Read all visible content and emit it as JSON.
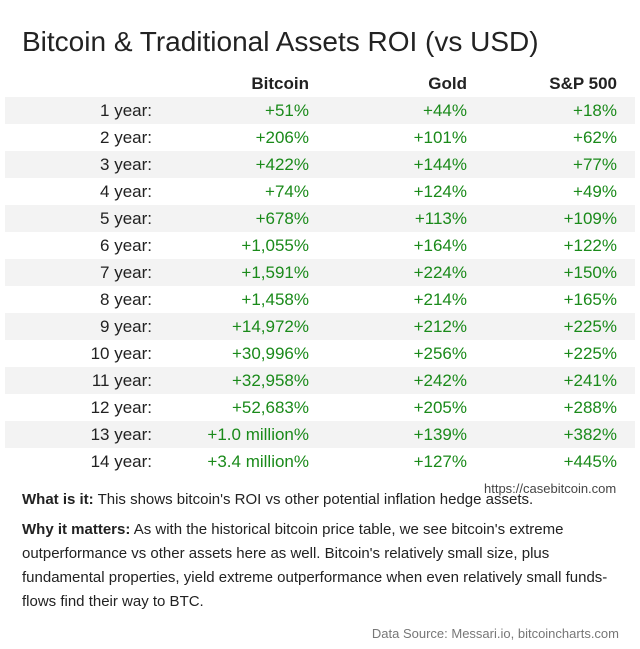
{
  "title": "Bitcoin & Traditional Assets ROI (vs USD)",
  "table": {
    "headers": [
      "",
      "Bitcoin",
      "Gold",
      "S&P 500"
    ],
    "rows": [
      {
        "label": "1 year:",
        "bitcoin": "+51%",
        "gold": "+44%",
        "sp500": "+18%"
      },
      {
        "label": "2 year:",
        "bitcoin": "+206%",
        "gold": "+101%",
        "sp500": "+62%"
      },
      {
        "label": "3 year:",
        "bitcoin": "+422%",
        "gold": "+144%",
        "sp500": "+77%"
      },
      {
        "label": "4 year:",
        "bitcoin": "+74%",
        "gold": "+124%",
        "sp500": "+49%"
      },
      {
        "label": "5 year:",
        "bitcoin": "+678%",
        "gold": "+113%",
        "sp500": "+109%"
      },
      {
        "label": "6 year:",
        "bitcoin": "+1,055%",
        "gold": "+164%",
        "sp500": "+122%"
      },
      {
        "label": "7 year:",
        "bitcoin": "+1,591%",
        "gold": "+224%",
        "sp500": "+150%"
      },
      {
        "label": "8 year:",
        "bitcoin": "+1,458%",
        "gold": "+214%",
        "sp500": "+165%"
      },
      {
        "label": "9 year:",
        "bitcoin": "+14,972%",
        "gold": "+212%",
        "sp500": "+225%"
      },
      {
        "label": "10 year:",
        "bitcoin": "+30,996%",
        "gold": "+256%",
        "sp500": "+225%"
      },
      {
        "label": "11 year:",
        "bitcoin": "+32,958%",
        "gold": "+242%",
        "sp500": "+241%"
      },
      {
        "label": "12 year:",
        "bitcoin": "+52,683%",
        "gold": "+205%",
        "sp500": "+288%"
      },
      {
        "label": "13 year:",
        "bitcoin": "+1.0 million%",
        "gold": "+139%",
        "sp500": "+382%"
      },
      {
        "label": "14 year:",
        "bitcoin": "+3.4 million%",
        "gold": "+127%",
        "sp500": "+445%"
      }
    ]
  },
  "watermark": "https://casebitcoin.com",
  "what_is_it": {
    "label": "What is it:",
    "text": " This shows bitcoin's ROI vs other potential inflation hedge assets."
  },
  "why_it_matters": {
    "label": "Why it matters:",
    "text": " As with the historical bitcoin price table, we see bitcoin's extreme outperformance vs other assets here as well. Bitcoin's relatively small size, plus fundamental properties, yield extreme outperformance when even relatively small funds-flows find their way to BTC."
  },
  "source": "Data Source: Messari.io, bitcoincharts.com",
  "colors": {
    "positive": "#1a8a1a",
    "stripe": "#f3f3f3",
    "text": "#222222"
  }
}
